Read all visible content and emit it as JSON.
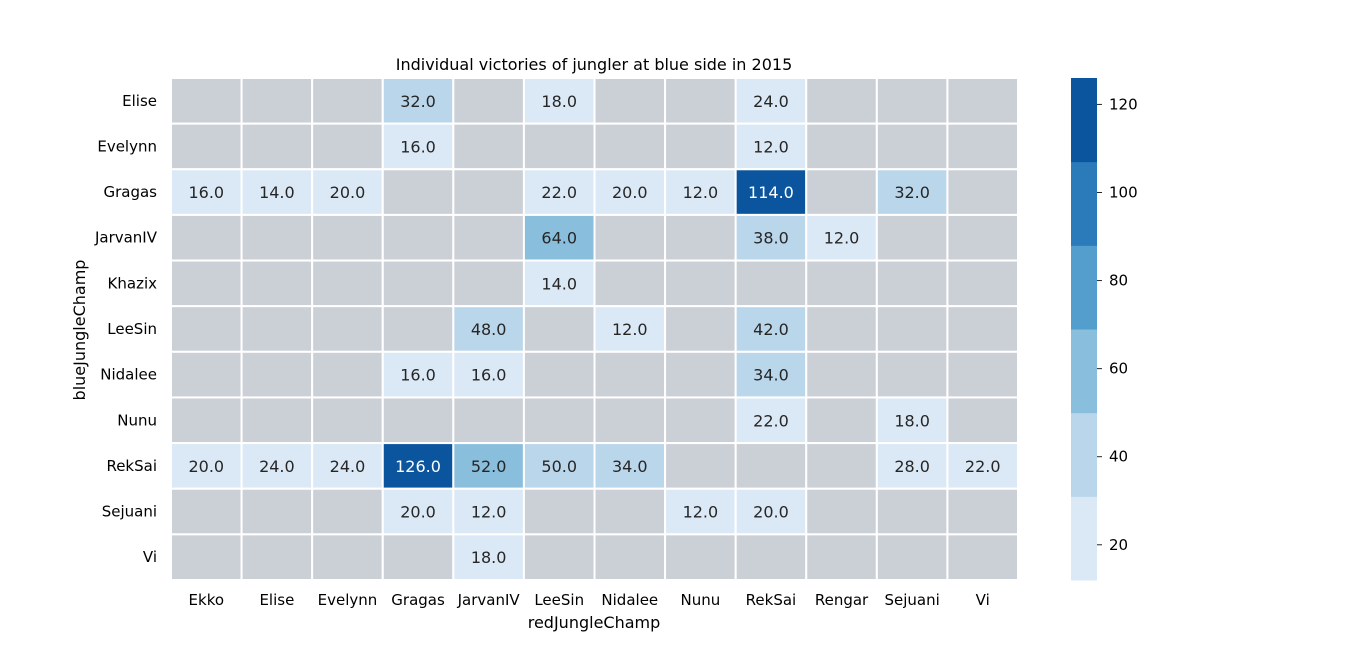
{
  "chart_data": {
    "type": "heatmap",
    "title": "Individual victories of jungler at blue side in 2015",
    "xlabel": "redJungleChamp",
    "ylabel": "blueJungleChamp",
    "x_categories": [
      "Ekko",
      "Elise",
      "Evelynn",
      "Gragas",
      "JarvanIV",
      "LeeSin",
      "Nidalee",
      "Nunu",
      "RekSai",
      "Rengar",
      "Sejuani",
      "Vi"
    ],
    "y_categories": [
      "Elise",
      "Evelynn",
      "Gragas",
      "JarvanIV",
      "Khazix",
      "LeeSin",
      "Nidalee",
      "Nunu",
      "RekSai",
      "Sejuani",
      "Vi"
    ],
    "values": [
      [
        null,
        null,
        null,
        32.0,
        null,
        18.0,
        null,
        null,
        24.0,
        null,
        null,
        null
      ],
      [
        null,
        null,
        null,
        16.0,
        null,
        null,
        null,
        null,
        12.0,
        null,
        null,
        null
      ],
      [
        16.0,
        14.0,
        20.0,
        null,
        null,
        22.0,
        20.0,
        12.0,
        114.0,
        null,
        32.0,
        null
      ],
      [
        null,
        null,
        null,
        null,
        null,
        64.0,
        null,
        null,
        38.0,
        12.0,
        null,
        null
      ],
      [
        null,
        null,
        null,
        null,
        null,
        14.0,
        null,
        null,
        null,
        null,
        null,
        null
      ],
      [
        null,
        null,
        null,
        null,
        48.0,
        null,
        12.0,
        null,
        42.0,
        null,
        null,
        null
      ],
      [
        null,
        null,
        null,
        16.0,
        16.0,
        null,
        null,
        null,
        34.0,
        null,
        null,
        null
      ],
      [
        null,
        null,
        null,
        null,
        null,
        null,
        null,
        null,
        22.0,
        null,
        18.0,
        null
      ],
      [
        20.0,
        24.0,
        24.0,
        126.0,
        52.0,
        50.0,
        34.0,
        null,
        null,
        null,
        28.0,
        22.0
      ],
      [
        null,
        null,
        null,
        20.0,
        12.0,
        null,
        null,
        12.0,
        20.0,
        null,
        null,
        null
      ],
      [
        null,
        null,
        null,
        null,
        18.0,
        null,
        null,
        null,
        null,
        null,
        null,
        null
      ]
    ],
    "vmin": 12,
    "vmax": 126,
    "colorbar_ticks": [
      20,
      40,
      60,
      80,
      100,
      120
    ],
    "colorbar_bins": [
      {
        "from": 12.0,
        "to": 31.0,
        "color": "#dbe9f6"
      },
      {
        "from": 31.0,
        "to": 50.0,
        "color": "#bad6eb"
      },
      {
        "from": 50.0,
        "to": 69.0,
        "color": "#89bedc"
      },
      {
        "from": 69.0,
        "to": 88.0,
        "color": "#539ecd"
      },
      {
        "from": 88.0,
        "to": 107.0,
        "color": "#2b7bba"
      },
      {
        "from": 107.0,
        "to": 126.0,
        "color": "#0b559f"
      }
    ],
    "missing_color": "#cbcfd6",
    "light_text_color": "#ffffff",
    "dark_text_color": "#262626",
    "grid_line_color": "#ffffff"
  }
}
